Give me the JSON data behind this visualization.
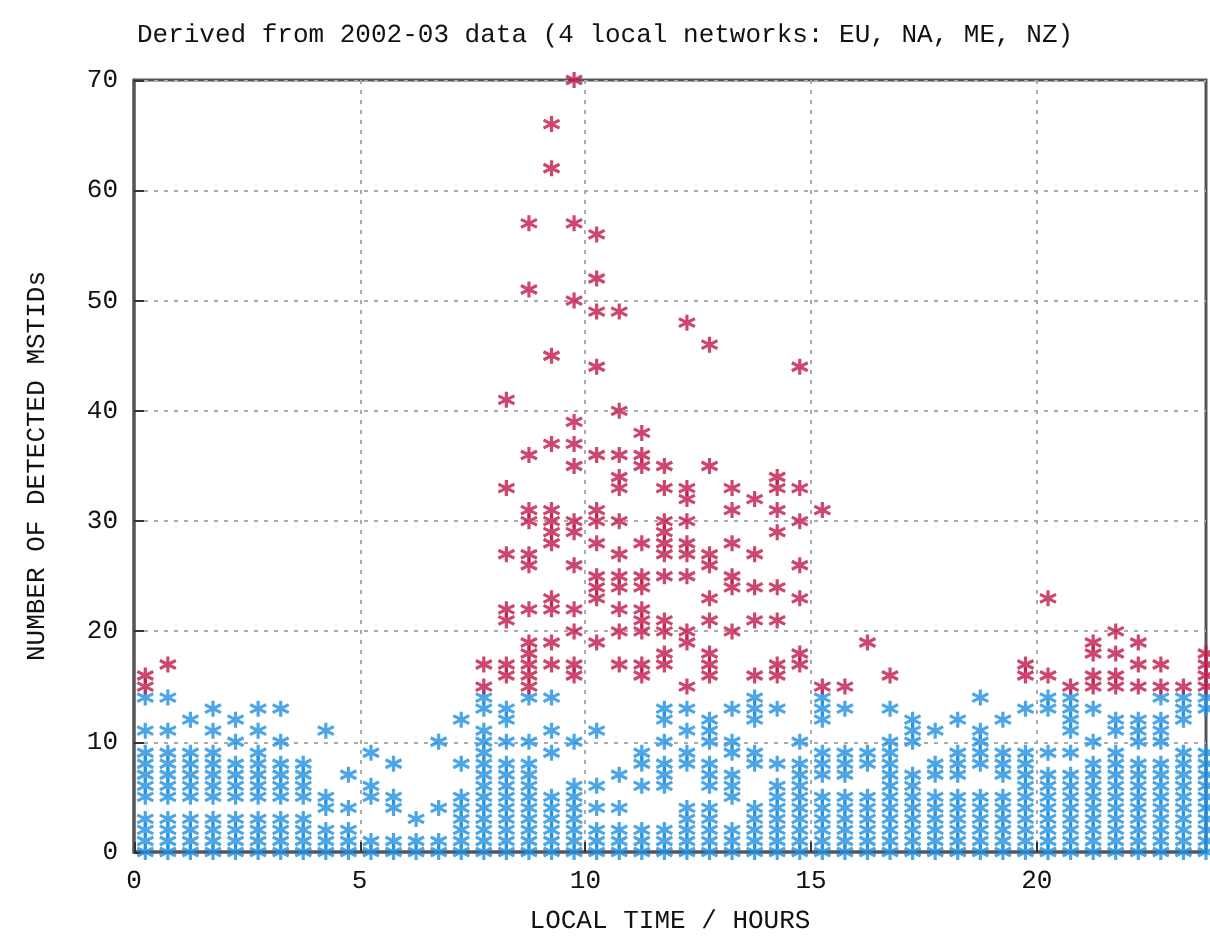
{
  "chart_data": {
    "type": "scatter",
    "title": "Derived from 2002-03 data (4 local networks: EU, NA, ME, NZ)",
    "xlabel": "LOCAL TIME / HOURS",
    "ylabel": "NUMBER OF DETECTED MSTIDs",
    "xlim": [
      0,
      23.75
    ],
    "xticks": [
      0,
      5,
      10,
      15,
      20
    ],
    "ylim": [
      0,
      70
    ],
    "yticks": [
      0,
      10,
      20,
      30,
      40,
      50,
      60,
      70
    ],
    "grid": true,
    "marker": "star",
    "series": [
      {
        "color": "#1e8fe0",
        "x": [
          0.25,
          0.25,
          0.25,
          0.25,
          0.25,
          0.25,
          0.25,
          0.25,
          0.25,
          0.25,
          0.25,
          0.75,
          0.75,
          0.75,
          0.75,
          0.75,
          0.75,
          0.75,
          0.75,
          0.75,
          0.75,
          0.75,
          1.25,
          1.25,
          1.25,
          1.25,
          1.25,
          1.25,
          1.25,
          1.25,
          1.25,
          1.25,
          1.75,
          1.75,
          1.75,
          1.75,
          1.75,
          1.75,
          1.75,
          1.75,
          1.75,
          1.75,
          1.75,
          2.25,
          2.25,
          2.25,
          2.25,
          2.25,
          2.25,
          2.25,
          2.25,
          2.25,
          2.25,
          2.75,
          2.75,
          2.75,
          2.75,
          2.75,
          2.75,
          2.75,
          2.75,
          2.75,
          2.75,
          2.75,
          3.25,
          3.25,
          3.25,
          3.25,
          3.25,
          3.25,
          3.25,
          3.25,
          3.25,
          3.25,
          3.75,
          3.75,
          3.75,
          3.75,
          3.75,
          3.75,
          3.75,
          3.75,
          4.25,
          4.25,
          4.25,
          4.25,
          4.25,
          4.25,
          4.75,
          4.75,
          4.75,
          4.75,
          4.75,
          5.25,
          5.25,
          5.25,
          5.25,
          5.25,
          5.75,
          5.75,
          5.75,
          5.75,
          5.75,
          6.25,
          6.25,
          6.25,
          6.75,
          6.75,
          6.75,
          6.75,
          7.25,
          7.25,
          7.25,
          7.25,
          7.25,
          7.25,
          7.25,
          7.25,
          7.75,
          7.75,
          7.75,
          7.75,
          7.75,
          7.75,
          7.75,
          7.75,
          7.75,
          7.75,
          7.75,
          7.75,
          7.75,
          7.75,
          8.25,
          8.25,
          8.25,
          8.25,
          8.25,
          8.25,
          8.25,
          8.25,
          8.25,
          8.25,
          8.25,
          8.25,
          8.75,
          8.75,
          8.75,
          8.75,
          8.75,
          8.75,
          8.75,
          8.75,
          8.75,
          8.75,
          8.75,
          9.25,
          9.25,
          9.25,
          9.25,
          9.25,
          9.25,
          9.25,
          9.25,
          9.25,
          9.75,
          9.75,
          9.75,
          9.75,
          9.75,
          9.75,
          9.75,
          9.75,
          10.25,
          10.25,
          10.25,
          10.25,
          10.25,
          10.25,
          10.75,
          10.75,
          10.75,
          10.75,
          10.75,
          11.25,
          11.25,
          11.25,
          11.25,
          11.25,
          11.25,
          11.75,
          11.75,
          11.75,
          11.75,
          11.75,
          11.75,
          11.75,
          11.75,
          11.75,
          12.25,
          12.25,
          12.25,
          12.25,
          12.25,
          12.25,
          12.25,
          12.25,
          12.25,
          12.75,
          12.75,
          12.75,
          12.75,
          12.75,
          12.75,
          12.75,
          12.75,
          12.75,
          12.75,
          12.75,
          13.25,
          13.25,
          13.25,
          13.25,
          13.25,
          13.25,
          13.25,
          13.25,
          13.25,
          13.75,
          13.75,
          13.75,
          13.75,
          13.75,
          13.75,
          13.75,
          13.75,
          13.75,
          13.75,
          14.25,
          14.25,
          14.25,
          14.25,
          14.25,
          14.25,
          14.25,
          14.25,
          14.25,
          14.75,
          14.75,
          14.75,
          14.75,
          14.75,
          14.75,
          14.75,
          14.75,
          14.75,
          14.75,
          15.25,
          15.25,
          15.25,
          15.25,
          15.25,
          15.25,
          15.25,
          15.25,
          15.25,
          15.25,
          15.25,
          15.25,
          15.75,
          15.75,
          15.75,
          15.75,
          15.75,
          15.75,
          15.75,
          15.75,
          15.75,
          15.75,
          16.25,
          16.25,
          16.25,
          16.25,
          16.25,
          16.25,
          16.25,
          16.25,
          16.75,
          16.75,
          16.75,
          16.75,
          16.75,
          16.75,
          16.75,
          16.75,
          16.75,
          16.75,
          16.75,
          16.75,
          17.25,
          17.25,
          17.25,
          17.25,
          17.25,
          17.25,
          17.25,
          17.25,
          17.25,
          17.25,
          17.25,
          17.75,
          17.75,
          17.75,
          17.75,
          17.75,
          17.75,
          17.75,
          17.75,
          17.75,
          18.25,
          18.25,
          18.25,
          18.25,
          18.25,
          18.25,
          18.25,
          18.25,
          18.25,
          18.25,
          18.75,
          18.75,
          18.75,
          18.75,
          18.75,
          18.75,
          18.75,
          18.75,
          18.75,
          18.75,
          18.75,
          19.25,
          19.25,
          19.25,
          19.25,
          19.25,
          19.25,
          19.25,
          19.25,
          19.25,
          19.25,
          19.75,
          19.75,
          19.75,
          19.75,
          19.75,
          19.75,
          19.75,
          19.75,
          19.75,
          19.75,
          19.75,
          20.25,
          20.25,
          20.25,
          20.25,
          20.25,
          20.25,
          20.25,
          20.25,
          20.25,
          20.25,
          20.25,
          20.75,
          20.75,
          20.75,
          20.75,
          20.75,
          20.75,
          20.75,
          20.75,
          20.75,
          20.75,
          20.75,
          20.75,
          20.75,
          21.25,
          21.25,
          21.25,
          21.25,
          21.25,
          21.25,
          21.25,
          21.25,
          21.25,
          21.25,
          21.25,
          21.75,
          21.75,
          21.75,
          21.75,
          21.75,
          21.75,
          21.75,
          21.75,
          21.75,
          21.75,
          21.75,
          21.75,
          22.25,
          22.25,
          22.25,
          22.25,
          22.25,
          22.25,
          22.25,
          22.25,
          22.25,
          22.25,
          22.25,
          22.25,
          22.75,
          22.75,
          22.75,
          22.75,
          22.75,
          22.75,
          22.75,
          22.75,
          22.75,
          22.75,
          22.75,
          22.75,
          22.75,
          23.25,
          23.25,
          23.25,
          23.25,
          23.25,
          23.25,
          23.25,
          23.25,
          23.25,
          23.25,
          23.25,
          23.25,
          23.25,
          23.75,
          23.75,
          23.75,
          23.75,
          23.75,
          23.75,
          23.75,
          23.75,
          23.75,
          23.75,
          23.75,
          23.75
        ],
        "values": [
          0,
          1,
          2,
          3,
          5,
          6,
          7,
          8,
          9,
          11,
          14,
          0,
          1,
          2,
          3,
          5,
          6,
          7,
          8,
          9,
          11,
          14,
          0,
          1,
          2,
          3,
          5,
          6,
          7,
          8,
          9,
          12,
          0,
          1,
          2,
          3,
          5,
          6,
          7,
          8,
          9,
          11,
          13,
          0,
          1,
          2,
          3,
          5,
          6,
          7,
          8,
          10,
          12,
          0,
          1,
          2,
          3,
          5,
          6,
          7,
          8,
          9,
          11,
          13,
          0,
          1,
          2,
          3,
          5,
          6,
          7,
          8,
          10,
          13,
          0,
          1,
          2,
          3,
          5,
          6,
          7,
          8,
          0,
          1,
          2,
          4,
          5,
          11,
          0,
          1,
          2,
          4,
          7,
          0,
          1,
          5,
          6,
          9,
          0,
          1,
          4,
          5,
          8,
          0,
          1,
          3,
          0,
          1,
          4,
          10,
          0,
          1,
          2,
          3,
          4,
          5,
          8,
          12,
          0,
          1,
          2,
          3,
          4,
          5,
          6,
          7,
          8,
          9,
          10,
          11,
          13,
          14,
          0,
          1,
          2,
          3,
          4,
          5,
          6,
          7,
          8,
          10,
          12,
          13,
          0,
          1,
          2,
          3,
          4,
          5,
          6,
          7,
          8,
          10,
          14,
          0,
          1,
          2,
          3,
          4,
          5,
          9,
          11,
          14,
          0,
          1,
          2,
          3,
          4,
          5,
          6,
          10,
          0,
          1,
          2,
          4,
          6,
          11,
          0,
          1,
          2,
          4,
          7,
          0,
          1,
          2,
          6,
          8,
          9,
          0,
          1,
          2,
          6,
          7,
          8,
          10,
          12,
          13,
          0,
          1,
          2,
          3,
          4,
          8,
          9,
          11,
          13,
          0,
          1,
          2,
          3,
          4,
          6,
          7,
          8,
          10,
          11,
          12,
          0,
          1,
          2,
          5,
          6,
          7,
          9,
          10,
          13,
          0,
          1,
          2,
          3,
          4,
          8,
          9,
          12,
          13,
          14,
          0,
          1,
          2,
          3,
          4,
          5,
          6,
          8,
          13,
          0,
          1,
          2,
          3,
          4,
          5,
          6,
          7,
          8,
          10,
          0,
          1,
          2,
          3,
          4,
          5,
          7,
          8,
          9,
          12,
          13,
          14,
          0,
          1,
          2,
          3,
          4,
          5,
          7,
          8,
          9,
          13,
          0,
          1,
          2,
          3,
          4,
          5,
          8,
          9,
          0,
          1,
          2,
          3,
          4,
          5,
          6,
          7,
          8,
          9,
          10,
          13,
          0,
          1,
          2,
          3,
          4,
          5,
          6,
          7,
          10,
          11,
          12,
          0,
          1,
          2,
          3,
          4,
          5,
          7,
          8,
          11,
          0,
          1,
          2,
          3,
          4,
          5,
          7,
          8,
          9,
          12,
          0,
          1,
          2,
          3,
          4,
          5,
          8,
          9,
          10,
          11,
          14,
          0,
          1,
          2,
          3,
          4,
          5,
          7,
          8,
          9,
          12,
          0,
          1,
          2,
          3,
          4,
          5,
          6,
          7,
          8,
          9,
          13,
          0,
          1,
          2,
          3,
          4,
          5,
          6,
          7,
          9,
          13,
          14,
          0,
          1,
          2,
          3,
          4,
          5,
          6,
          7,
          9,
          11,
          12,
          13,
          14,
          0,
          1,
          2,
          3,
          4,
          5,
          6,
          7,
          8,
          10,
          13,
          0,
          1,
          2,
          3,
          4,
          5,
          6,
          7,
          8,
          9,
          11,
          12,
          0,
          1,
          2,
          3,
          4,
          5,
          6,
          7,
          8,
          10,
          11,
          12,
          0,
          1,
          2,
          3,
          4,
          5,
          6,
          7,
          8,
          10,
          11,
          12,
          14,
          0,
          1,
          2,
          3,
          4,
          5,
          6,
          7,
          8,
          9,
          12,
          13,
          14,
          0,
          1,
          2,
          3,
          4,
          5,
          6,
          7,
          8,
          9,
          13,
          14
        ]
      },
      {
        "color": "#c01848",
        "x": [
          0.25,
          0.25,
          0.75,
          7.75,
          7.75,
          8.25,
          8.25,
          8.25,
          8.25,
          8.25,
          8.25,
          8.25,
          8.75,
          8.75,
          8.75,
          8.75,
          8.75,
          8.75,
          8.75,
          8.75,
          8.75,
          8.75,
          8.75,
          8.75,
          8.75,
          9.25,
          9.25,
          9.25,
          9.25,
          9.25,
          9.25,
          9.25,
          9.25,
          9.25,
          9.25,
          9.25,
          9.25,
          9.75,
          9.75,
          9.75,
          9.75,
          9.75,
          9.75,
          9.75,
          9.75,
          9.75,
          9.75,
          9.75,
          9.75,
          9.75,
          10.25,
          10.25,
          10.25,
          10.25,
          10.25,
          10.25,
          10.25,
          10.25,
          10.25,
          10.25,
          10.25,
          10.25,
          10.75,
          10.75,
          10.75,
          10.75,
          10.75,
          10.75,
          10.75,
          10.75,
          10.75,
          10.75,
          10.75,
          10.75,
          11.25,
          11.25,
          11.25,
          11.25,
          11.25,
          11.25,
          11.25,
          11.25,
          11.25,
          11.25,
          11.25,
          11.75,
          11.75,
          11.75,
          11.75,
          11.75,
          11.75,
          11.75,
          11.75,
          11.75,
          11.75,
          11.75,
          12.25,
          12.25,
          12.25,
          12.25,
          12.25,
          12.25,
          12.25,
          12.25,
          12.25,
          12.25,
          12.75,
          12.75,
          12.75,
          12.75,
          12.75,
          12.75,
          12.75,
          12.75,
          12.75,
          13.25,
          13.25,
          13.25,
          13.25,
          13.25,
          13.25,
          13.75,
          13.75,
          13.75,
          13.75,
          13.75,
          14.25,
          14.25,
          14.25,
          14.25,
          14.25,
          14.25,
          14.25,
          14.25,
          14.75,
          14.75,
          14.75,
          14.75,
          14.75,
          14.75,
          14.75,
          15.25,
          15.25,
          15.75,
          16.25,
          16.75,
          19.75,
          19.75,
          20.25,
          20.25,
          20.75,
          21.25,
          21.25,
          21.25,
          21.25,
          21.75,
          21.75,
          21.75,
          21.75,
          22.25,
          22.25,
          22.25,
          22.75,
          22.75,
          23.25,
          23.75,
          23.75,
          23.75,
          23.75
        ],
        "values": [
          15,
          16,
          17,
          15,
          17,
          16,
          17,
          21,
          22,
          27,
          33,
          41,
          15,
          16,
          17,
          18,
          19,
          22,
          26,
          27,
          30,
          31,
          36,
          51,
          57,
          17,
          19,
          22,
          23,
          28,
          29,
          30,
          31,
          37,
          45,
          62,
          66,
          16,
          17,
          20,
          22,
          26,
          29,
          30,
          35,
          37,
          39,
          50,
          57,
          70,
          19,
          23,
          24,
          25,
          28,
          30,
          31,
          36,
          44,
          49,
          52,
          56,
          17,
          20,
          22,
          24,
          25,
          27,
          30,
          33,
          34,
          36,
          40,
          49,
          16,
          17,
          20,
          21,
          22,
          24,
          25,
          28,
          35,
          36,
          38,
          17,
          18,
          20,
          21,
          25,
          27,
          28,
          29,
          30,
          33,
          35,
          15,
          19,
          20,
          25,
          27,
          28,
          30,
          32,
          33,
          48,
          16,
          17,
          18,
          21,
          23,
          26,
          27,
          35,
          46,
          20,
          24,
          25,
          28,
          31,
          33,
          16,
          21,
          24,
          27,
          32,
          16,
          17,
          21,
          24,
          29,
          31,
          33,
          34,
          17,
          18,
          23,
          26,
          30,
          33,
          44,
          15,
          31,
          15,
          19,
          16,
          16,
          17,
          16,
          23,
          15,
          15,
          16,
          18,
          19,
          15,
          16,
          18,
          20,
          15,
          17,
          19,
          15,
          17,
          15,
          15,
          16,
          17,
          18
        ]
      }
    ]
  }
}
